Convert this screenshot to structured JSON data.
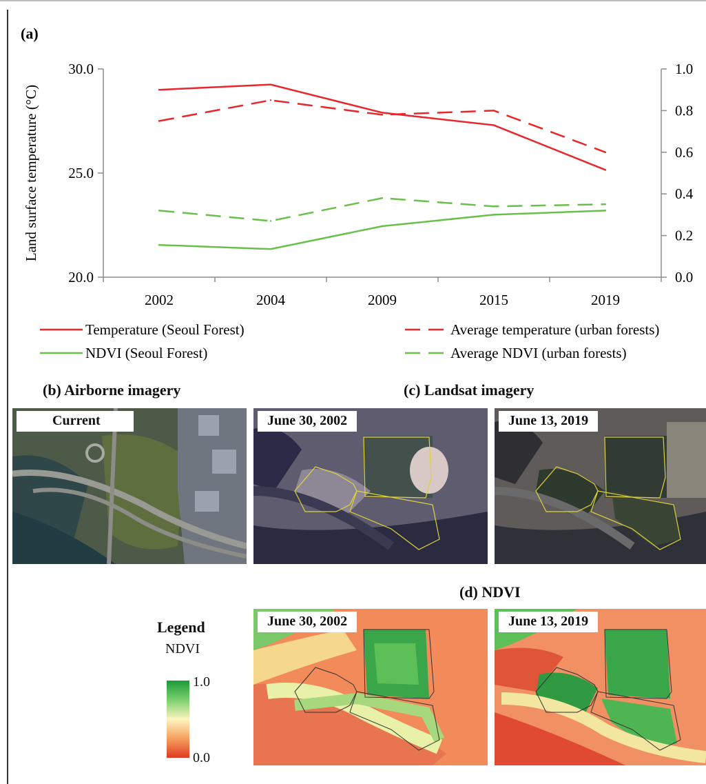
{
  "chart_data": {
    "type": "line",
    "panel_label": "(a)",
    "categories": [
      "2002",
      "2004",
      "2009",
      "2015",
      "2019"
    ],
    "ylabel": "Land surface temperature (°C)",
    "ylim": [
      20.0,
      30.0
    ],
    "y_ticks": [
      "20.0",
      "25.0",
      "30.0"
    ],
    "y2lim": [
      0.0,
      1.0
    ],
    "y2_ticks": [
      "0.0",
      "0.2",
      "0.4",
      "0.6",
      "0.8",
      "1.0"
    ],
    "legend_placement": "bottom",
    "series": [
      {
        "name": "Temperature (Seoul Forest)",
        "axis": "left",
        "color": "#e8262b",
        "dash": false,
        "values": [
          29.0,
          29.25,
          27.9,
          27.3,
          25.15
        ]
      },
      {
        "name": "Average temperature (urban forests)",
        "axis": "left",
        "color": "#e8262b",
        "dash": true,
        "values": [
          27.5,
          28.5,
          27.8,
          28.0,
          26.0
        ]
      },
      {
        "name": "NDVI (Seoul Forest)",
        "axis": "right",
        "color": "#6abf4b",
        "dash": false,
        "values": [
          0.155,
          0.135,
          0.245,
          0.3,
          0.32
        ]
      },
      {
        "name": "Average NDVI (urban forests)",
        "axis": "right",
        "color": "#6abf4b",
        "dash": true,
        "values": [
          0.32,
          0.27,
          0.38,
          0.34,
          0.35
        ]
      }
    ]
  },
  "panels": {
    "b_title": "(b) Airborne imagery",
    "b_label": "Current",
    "c_title": "(c) Landsat imagery",
    "c_label_1": "June 30, 2002",
    "c_label_2": "June 13, 2019",
    "d_title": "(d) NDVI",
    "d_label_1": "June 30, 2002",
    "d_label_2": "June 13, 2019"
  },
  "ndvi_legend": {
    "title": "Legend",
    "subtitle": "NDVI",
    "max": "1.0",
    "min": "0.0"
  }
}
